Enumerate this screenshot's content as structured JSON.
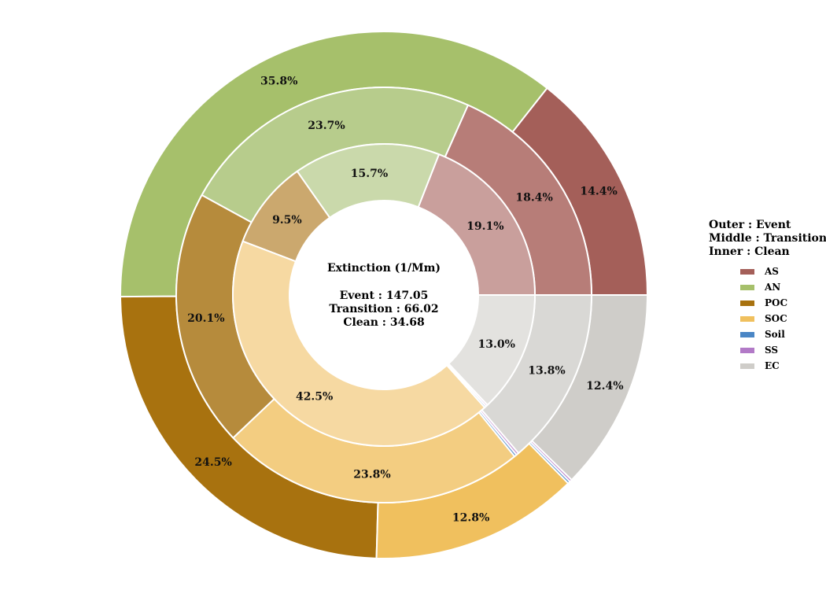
{
  "legend": {
    "title_outer": "Outer : Event",
    "title_middle": "Middle : Transition",
    "title_inner": "Inner : Clean"
  },
  "center": {
    "heading": "Extinction (1/Mm)",
    "event_line": "Event : 147.05",
    "transition_line": "Transition : 66.02",
    "clean_line": "Clean : 34.68"
  },
  "chart_data": {
    "type": "pie",
    "variant": "nested-donut",
    "categories": [
      "AS",
      "AN",
      "POC",
      "SOC",
      "Soil",
      "SS",
      "EC"
    ],
    "colors": {
      "outer": [
        "#a45f59",
        "#a6c06b",
        "#a8720f",
        "#f0c05e",
        "#4a86c5",
        "#b27ac7",
        "#cfcdc9"
      ],
      "middle": [
        "#b77d78",
        "#b7cc8c",
        "#b68b3c",
        "#f3cd81",
        "#6a9ad0",
        "#c393d1",
        "#d9d8d5"
      ],
      "inner": [
        "#c99f9c",
        "#cad9ab",
        "#cba86e",
        "#f6d9a2",
        "#8cb1db",
        "#d3addc",
        "#e3e2df"
      ]
    },
    "series": [
      {
        "name": "Event",
        "ring": "outer",
        "values": [
          14.4,
          35.8,
          24.5,
          12.8,
          0.15,
          0.15,
          12.4
        ],
        "labels": [
          "14.4%",
          "35.8%",
          "24.5%",
          "12.8%",
          "",
          "",
          "12.4%"
        ]
      },
      {
        "name": "Transition",
        "ring": "middle",
        "values": [
          18.4,
          23.7,
          20.1,
          23.8,
          0.2,
          0.2,
          13.8
        ],
        "labels": [
          "18.4%",
          "23.7%",
          "20.1%",
          "23.8%",
          "",
          "",
          "13.8%"
        ]
      },
      {
        "name": "Clean",
        "ring": "inner",
        "values": [
          19.1,
          15.7,
          9.5,
          42.5,
          0.2,
          0.2,
          13.0
        ],
        "labels": [
          "19.1%",
          "15.7%",
          "9.5%",
          "42.5%",
          "",
          "",
          "13.0%"
        ]
      }
    ],
    "start_angle_deg": 0,
    "direction": "counterclockwise",
    "legend_position": "right"
  }
}
